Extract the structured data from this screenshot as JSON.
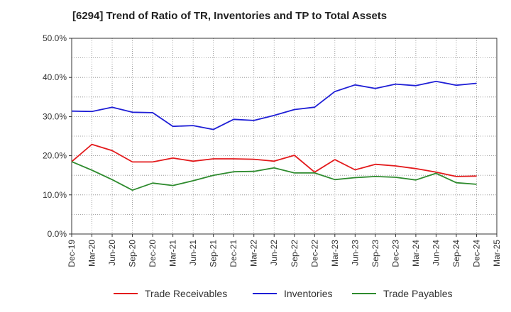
{
  "chart_data": {
    "type": "line",
    "title": "[6294]  Trend of Ratio of TR, Inventories and TP to Total Assets",
    "xlabel": "",
    "ylabel": "",
    "x_tick_labels": [
      "Dec-19",
      "Mar-20",
      "Jun-20",
      "Sep-20",
      "Dec-20",
      "Mar-21",
      "Jun-21",
      "Sep-21",
      "Dec-21",
      "Mar-22",
      "Jun-22",
      "Sep-22",
      "Dec-22",
      "Mar-23",
      "Jun-23",
      "Sep-23",
      "Dec-23",
      "Mar-24",
      "Jun-24",
      "Sep-24",
      "Dec-24",
      "Mar-25"
    ],
    "y_tick_labels": [
      "0.0%",
      "10.0%",
      "20.0%",
      "30.0%",
      "40.0%",
      "50.0%"
    ],
    "ylim": [
      0,
      50
    ],
    "grid": true,
    "legend_position": "bottom",
    "categories": [
      "Dec-19",
      "Mar-20",
      "Jun-20",
      "Sep-20",
      "Dec-20",
      "Mar-21",
      "Jun-21",
      "Sep-21",
      "Dec-21",
      "Mar-22",
      "Jun-22",
      "Sep-22",
      "Dec-22",
      "Mar-23",
      "Jun-23",
      "Sep-23",
      "Dec-23",
      "Mar-24",
      "Jun-24",
      "Sep-24",
      "Dec-24"
    ],
    "series": [
      {
        "name": "Trade Receivables",
        "color": "#e31a1c",
        "values": [
          18.5,
          22.9,
          21.3,
          18.4,
          18.4,
          19.4,
          18.6,
          19.2,
          19.2,
          19.1,
          18.6,
          20.1,
          15.8,
          19.0,
          16.4,
          17.8,
          17.4,
          16.7,
          15.8,
          14.7,
          14.8
        ]
      },
      {
        "name": "Inventories",
        "color": "#1f1fd6",
        "values": [
          31.4,
          31.3,
          32.4,
          31.1,
          31.0,
          27.5,
          27.7,
          26.7,
          29.3,
          29.0,
          30.3,
          31.8,
          32.4,
          36.4,
          38.1,
          37.2,
          38.3,
          37.9,
          39.0,
          38.0,
          38.5
        ]
      },
      {
        "name": "Trade Payables",
        "color": "#2e8b2e",
        "values": [
          18.5,
          16.3,
          13.9,
          11.2,
          13.0,
          12.4,
          13.6,
          15.0,
          15.9,
          16.0,
          16.9,
          15.6,
          15.6,
          13.9,
          14.4,
          14.7,
          14.5,
          13.8,
          15.5,
          13.1,
          12.7
        ]
      }
    ]
  }
}
